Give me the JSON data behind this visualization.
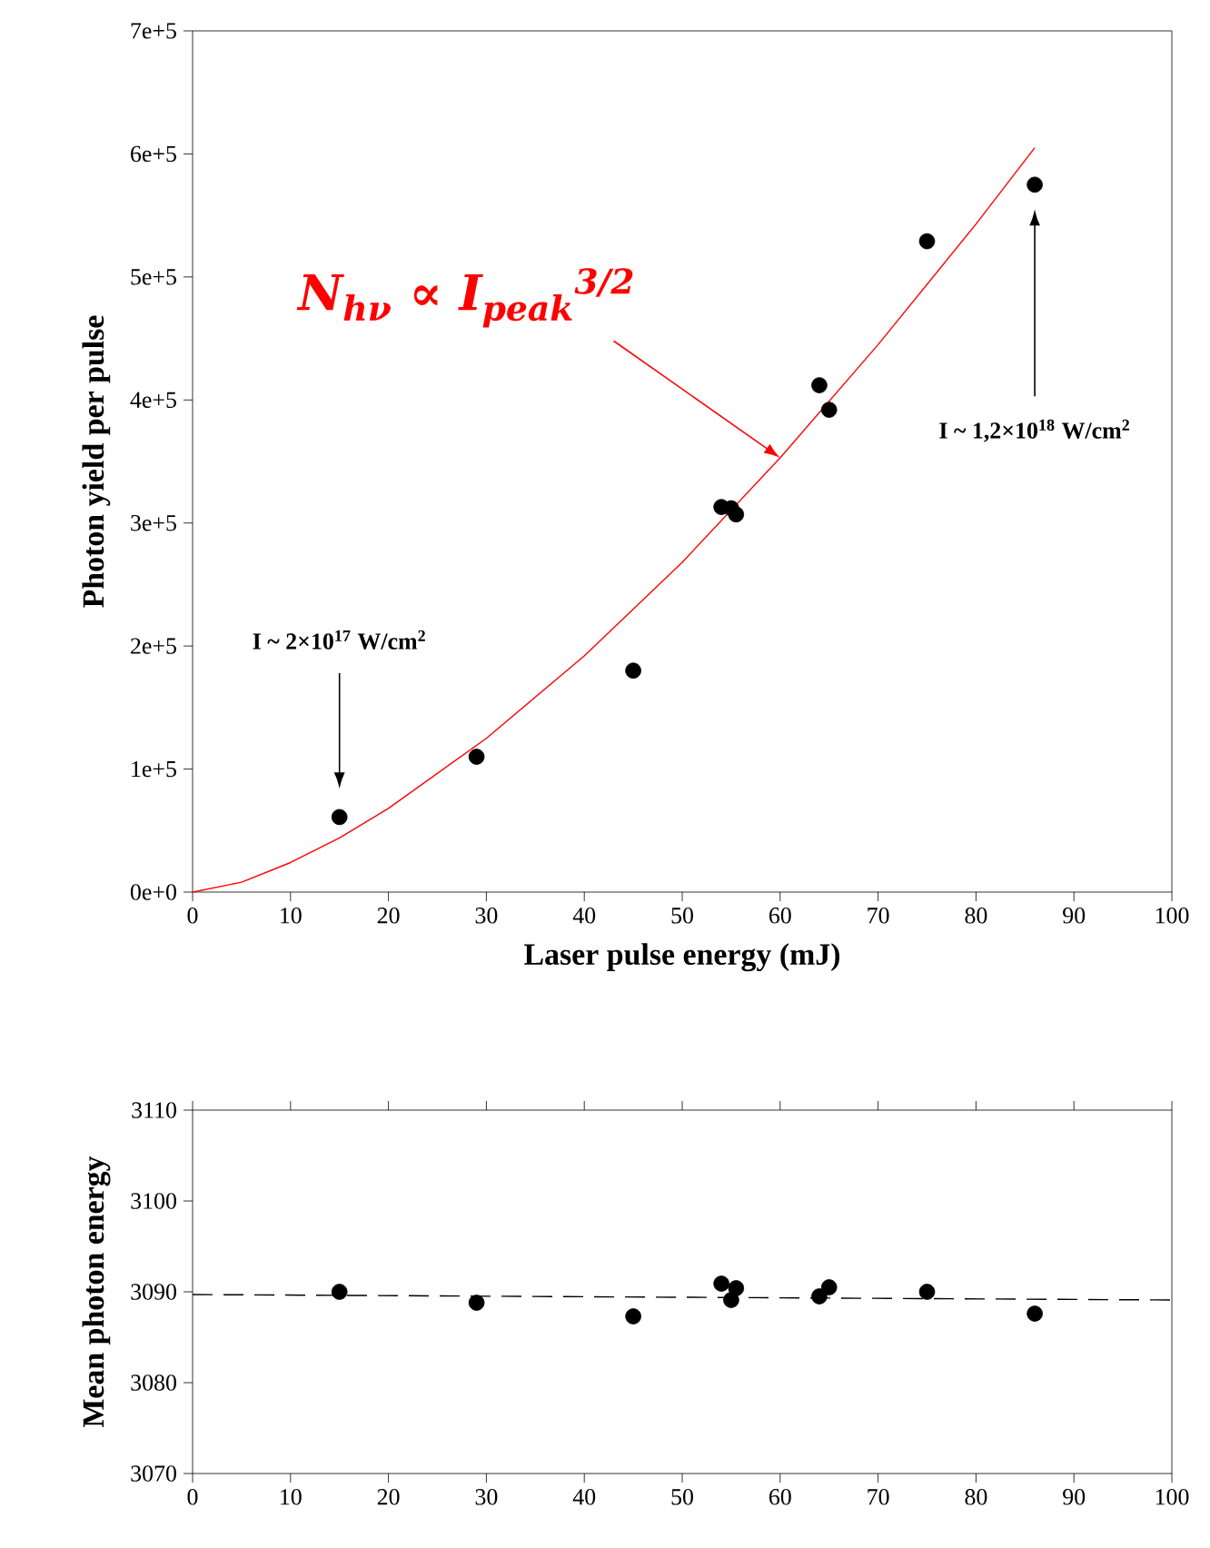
{
  "chart_data": [
    {
      "type": "scatter",
      "xlabel": "Laser pulse energy (mJ)",
      "ylabel": "Photon yield per pulse",
      "xlim": [
        0,
        100
      ],
      "xticks": [
        0,
        10,
        20,
        30,
        40,
        50,
        60,
        70,
        80,
        90,
        100
      ],
      "ylim": [
        0,
        700000
      ],
      "yticks": [
        {
          "value": 0,
          "label": "0e+0"
        },
        {
          "value": 100000,
          "label": "1e+5"
        },
        {
          "value": 200000,
          "label": "2e+5"
        },
        {
          "value": 300000,
          "label": "3e+5"
        },
        {
          "value": 400000,
          "label": "4e+5"
        },
        {
          "value": 500000,
          "label": "5e+5"
        },
        {
          "value": 600000,
          "label": "6e+5"
        },
        {
          "value": 700000,
          "label": "7e+5"
        }
      ],
      "marker": "circle",
      "series": [
        {
          "color": "#000000",
          "x": [
            15,
            29,
            45,
            54,
            55,
            55.5,
            64,
            65,
            75,
            86
          ],
          "values": [
            61000,
            110000,
            180000,
            313000,
            312000,
            307000,
            412000,
            392000,
            529000,
            575000
          ]
        },
        {
          "type": "line",
          "color": "#ff0000",
          "marker": "none",
          "line_style": "solid",
          "x": [
            0,
            5,
            10,
            15,
            20,
            30,
            40,
            50,
            60,
            70,
            80,
            86
          ],
          "values": [
            0,
            8000,
            24000,
            44000,
            68000,
            125000,
            192000,
            268000,
            353000,
            445000,
            543000,
            605000
          ]
        }
      ],
      "annotations": [
        {
          "text": "N$_{hν}$ ∝ I$_{peak}$$^{3/2}$",
          "x": 60,
          "y": 353000
        },
        "I ~ 2×10$^{17}$ W/cm$^{2}$",
        "I ~ 1,2×10$^{18}$ W/cm$^{2}$"
      ]
    },
    {
      "type": "scatter",
      "ylabel": "Mean photon energy",
      "xlim": [
        0,
        100
      ],
      "xticks": [
        0,
        10,
        20,
        30,
        40,
        50,
        60,
        70,
        80,
        90,
        100
      ],
      "ylim": [
        3070,
        3110
      ],
      "yticks": [
        3070,
        3080,
        3090,
        3100,
        3110
      ],
      "marker": "circle",
      "series": [
        {
          "color": "#000000",
          "x": [
            15,
            29,
            45,
            54,
            55,
            55.5,
            64,
            65,
            75,
            86
          ],
          "values": [
            3090.0,
            3088.8,
            3087.3,
            3090.9,
            3089.1,
            3090.4,
            3089.5,
            3090.5,
            3090.0,
            3087.6
          ]
        },
        {
          "type": "line",
          "color": "#000000",
          "marker": "none",
          "line_style": "dashed",
          "x": [
            0,
            100
          ],
          "values": [
            3089.7,
            3089.1
          ]
        }
      ]
    }
  ]
}
